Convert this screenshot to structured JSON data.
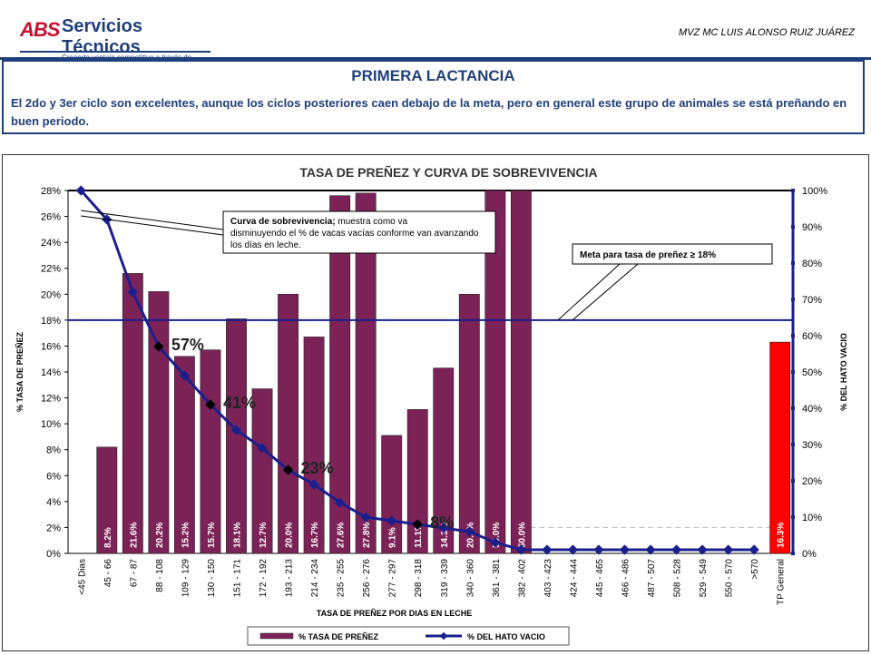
{
  "header": {
    "logo_mark": "ABS",
    "logo_name": "Servicios Técnicos",
    "logo_tagline": "Creando ventaja competitiva a través de resultados",
    "author": "MVZ MC LUIS ALONSO RUIZ JUÁREZ"
  },
  "summary": {
    "title": "PRIMERA LACTANCIA",
    "body": "El 2do y 3er ciclo son excelentes, aunque los ciclos posteriores caen debajo de la meta, pero en general este grupo de animales se está preñando en buen periodo."
  },
  "chart_data": {
    "type": "bar",
    "title": "TASA DE PREÑEZ  Y CURVA DE SOBREVIVENCIA",
    "xlabel": "TASA DE PREÑEZ POR DIAS EN LECHE",
    "ylabel": "% TASA DE PREÑEZ",
    "y2label": "% DEL HATO VACIO",
    "ylim": [
      0,
      28
    ],
    "y_ticks": [
      "0%",
      "2%",
      "4%",
      "6%",
      "8%",
      "10%",
      "12%",
      "14%",
      "16%",
      "18%",
      "20%",
      "22%",
      "24%",
      "26%",
      "28%"
    ],
    "y2lim": [
      0,
      100
    ],
    "y2_ticks": [
      "0%",
      "10%",
      "20%",
      "30%",
      "40%",
      "50%",
      "60%",
      "70%",
      "80%",
      "90%",
      "100%"
    ],
    "categories": [
      "<45 Dias",
      "45 - 66",
      "67 - 87",
      "88 - 108",
      "109 - 129",
      "130 - 150",
      "151 - 171",
      "172 - 192",
      "193 - 213",
      "214 - 234",
      "235 - 255",
      "256 - 276",
      "277 - 297",
      "298 - 318",
      "319 - 339",
      "340 - 360",
      "361 - 381",
      "382 - 402",
      "403 - 423",
      "424 - 444",
      "445 - 465",
      "466 - 486",
      "487 - 507",
      "508 - 528",
      "529 - 549",
      "550 - 570",
      ">570",
      "TP General"
    ],
    "series": [
      {
        "name": "% TASA DE PREÑEZ",
        "color": "#7b2257",
        "highlight_color": "#ff0000",
        "values": [
          null,
          8.2,
          21.6,
          20.2,
          15.2,
          15.7,
          18.1,
          12.7,
          20.0,
          16.7,
          27.6,
          27.8,
          9.1,
          11.1,
          14.3,
          20.0,
          50.0,
          50.0,
          null,
          null,
          null,
          null,
          null,
          null,
          null,
          null,
          null,
          16.3
        ],
        "labels": [
          "",
          "8.2%",
          "21.6%",
          "20.2%",
          "15.2%",
          "15.7%",
          "18.1%",
          "12.7%",
          "20.0%",
          "16.7%",
          "27.6%",
          "27.8%",
          "9.1%",
          "11.1%",
          "14.3%",
          "20.0%",
          "50.0%",
          "50.0%",
          "",
          "",
          "",
          "",
          "",
          "",
          "",
          "",
          "",
          "16.3%"
        ]
      },
      {
        "name": "% DEL HATO VACIO",
        "color": "#1a1f8c",
        "axis": "right",
        "values": [
          100,
          92,
          72,
          57,
          49,
          41,
          34,
          29,
          23,
          19,
          14,
          10,
          9,
          8,
          7,
          6,
          3,
          1,
          1,
          1,
          1,
          1,
          1,
          1,
          1,
          1,
          1,
          null
        ]
      }
    ],
    "goal": {
      "value": 18,
      "label": "Meta para tasa de preñez",
      "label_value": "≥ 18%"
    },
    "callout": {
      "bold": "Curva de sobrevivencia;",
      "text": " muestra como va disminuyendo el % de vacas vacías conforme van avanzando los días en leche."
    },
    "curve_annotations": [
      {
        "category_index": 3,
        "text": "57%"
      },
      {
        "category_index": 5,
        "text": "41%"
      },
      {
        "category_index": 8,
        "text": "23%"
      },
      {
        "category_index": 13,
        "text": "8%"
      }
    ],
    "legend": {
      "position": "bottom",
      "items": [
        "% TASA DE PREÑEZ",
        "% DEL HATO VACIO"
      ]
    }
  }
}
